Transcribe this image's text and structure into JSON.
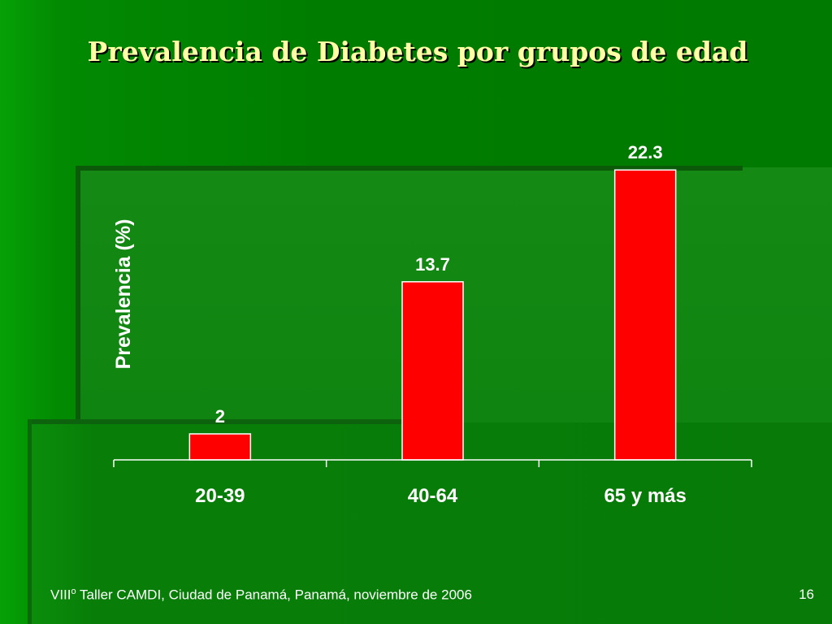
{
  "slide": {
    "title": "Prevalencia de Diabetes por grupos de edad",
    "footer_main": "VIII",
    "footer_sup": "o",
    "footer_rest": " Taller CAMDI, Ciudad de Panamá, Panamá, noviembre de 2006",
    "page_number": "16"
  },
  "colors": {
    "background": "#007c00",
    "title": "#ffffa6",
    "bar_fill": "#ff0000",
    "bar_stroke": "#ffffff",
    "text": "#ffffff"
  },
  "chart_data": {
    "type": "bar",
    "title": "",
    "xlabel": "",
    "ylabel": "Prevalencia (%)",
    "categories": [
      "20-39",
      "40-64",
      "65 y más"
    ],
    "values": [
      2,
      13.7,
      22.3
    ],
    "data_labels": [
      "2",
      "13.7",
      "22.3"
    ],
    "ylim": [
      0,
      25
    ],
    "grid": false,
    "legend": "none"
  }
}
